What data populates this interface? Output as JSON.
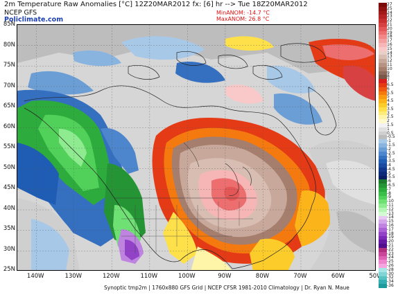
{
  "header": {
    "title": "2m Temperature Raw Anomalies [°C] 12Z20MAR2012 fx: [6] hr --> Tue 18Z20MAR2012",
    "model": "NCEP GFS",
    "brand": "Policlimate.com",
    "min_anom": "MinANOM: -14.7 °C",
    "max_anom": "MaxANOM: 26.8 °C"
  },
  "axes": {
    "lat_labels": [
      "85N",
      "80N",
      "75N",
      "70N",
      "65N",
      "60N",
      "55N",
      "50N",
      "45N",
      "40N",
      "35N",
      "30N",
      "25N"
    ],
    "lon_labels": [
      "140W",
      "130W",
      "120W",
      "110W",
      "100W",
      "90W",
      "80W",
      "70W",
      "60W",
      "50W"
    ]
  },
  "footer": "Synoptic tmp2m | 1760x880 GFS Grid | NCEP CFSR 1981-2010 Climatology | Dr. Ryan N. Maue",
  "colorbar": {
    "labels": [
      "27",
      "25",
      "24",
      "23",
      "22",
      "21",
      "20",
      "19",
      "18",
      "17",
      "16",
      "15",
      "14",
      "13",
      "12",
      "11",
      "10",
      "9",
      "8",
      "7",
      "6.5",
      "6",
      "5.5",
      "5",
      "4.5",
      "4",
      "3.5",
      "3",
      "2.5",
      "2",
      "1.5",
      "1",
      "0.5",
      "-0.5",
      "-1",
      "-1.5",
      "-2",
      "-2.5",
      "-3",
      "-3.5",
      "-4",
      "-4.5",
      "-5",
      "-5.5",
      "-6",
      "-6.5",
      "-7",
      "-8",
      "-9",
      "-10",
      "-11",
      "-12",
      "-13",
      "-14",
      "-15",
      "-16",
      "-17",
      "-18",
      "-19",
      "-20",
      "-21",
      "-22",
      "-23",
      "-24",
      "-25",
      "-26",
      "-28",
      "-30",
      "-32",
      "-34",
      "-36"
    ],
    "colors": [
      "#7a0a0a",
      "#8e1212",
      "#a21a1a",
      "#b52424",
      "#c82f2f",
      "#d84141",
      "#e35757",
      "#ec6e6e",
      "#f28787",
      "#f5a0a0",
      "#f7b6b6",
      "#f9c9c9",
      "#e8d0c8",
      "#d8bdb2",
      "#c8a89b",
      "#b79384",
      "#a67e6e",
      "#8f6a5c",
      "#7a5848",
      "#d81f1f",
      "#e43b16",
      "#ee5a12",
      "#f47a10",
      "#f89a12",
      "#fbb41a",
      "#fccc2a",
      "#fde04a",
      "#fdec7a",
      "#fef5a8",
      "#fff9cc",
      "#f2f2f2",
      "#e0e0e0",
      "#cfcfcf",
      "#bcbcbc",
      "#a8c8e8",
      "#8ab4e0",
      "#6c9ed6",
      "#4d86cc",
      "#3570c0",
      "#1f5cb4",
      "#1a4aa0",
      "#12368c",
      "#0d2a78",
      "#0a1e64",
      "#1c7a2c",
      "#249434",
      "#2eab3d",
      "#3cbf48",
      "#52d15a",
      "#6fe074",
      "#8eeb90",
      "#b4f4b4",
      "#d4fad4",
      "#e6c8f2",
      "#d3a6ea",
      "#bf84e0",
      "#aa62d4",
      "#9242c6",
      "#7a2ab6",
      "#6418a2",
      "#500e8c",
      "#b0307e",
      "#c8479a",
      "#de62b4",
      "#ee84cc",
      "#f6a6de",
      "#a8e6e6",
      "#80d4d4",
      "#58c2c2",
      "#34aeb0",
      "#1c9a9c"
    ]
  },
  "map": {
    "lat_range": [
      25,
      85
    ],
    "lon_range": [
      -145,
      -50
    ]
  }
}
